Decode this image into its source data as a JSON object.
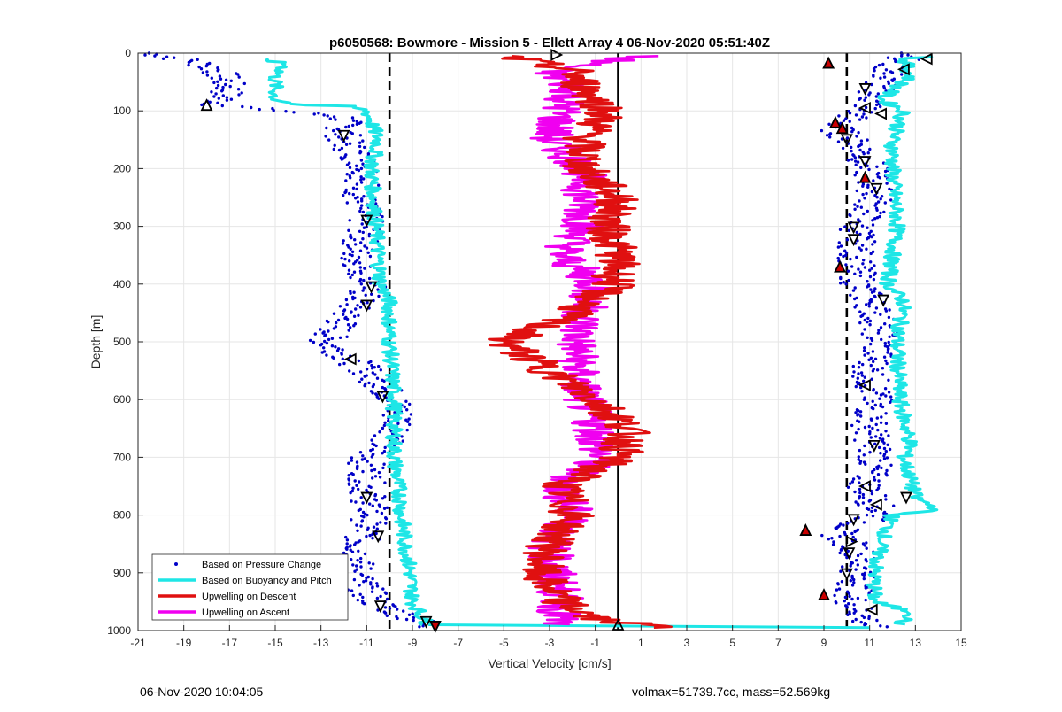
{
  "footer": {
    "left": "06-Nov-2020 10:04:05",
    "right": "volmax=51739.7cc, mass=52.569kg"
  },
  "chart_data": {
    "type": "line",
    "title": "p6050568: Bowmore - Mission 5 - Ellett Array 4 06-Nov-2020 05:51:40Z",
    "xlabel": "Vertical Velocity [cm/s]",
    "ylabel": "Depth [m]",
    "xlim": [
      -21,
      15
    ],
    "ylim": [
      0,
      1000
    ],
    "y_reversed": true,
    "grid": true,
    "xticks": [
      -21,
      -19,
      -17,
      -15,
      -13,
      -11,
      -9,
      -7,
      -5,
      -3,
      -1,
      1,
      3,
      5,
      7,
      9,
      11,
      13,
      15
    ],
    "yticks": [
      0,
      100,
      200,
      300,
      400,
      500,
      600,
      700,
      800,
      900,
      1000
    ],
    "legend_position": "bottom-left",
    "reference_lines": [
      {
        "x": -10,
        "style": "dashed",
        "color": "#000000"
      },
      {
        "x": 0,
        "style": "solid",
        "color": "#000000"
      },
      {
        "x": 10,
        "style": "dashed",
        "color": "#000000"
      }
    ],
    "series": [
      {
        "name": "Based on Pressure Change",
        "style": "points",
        "color": "#0000c8",
        "profiles": [
          {
            "depth": [
              0,
              15,
              30,
              60,
              90,
              110,
              150,
              200,
              250,
              300,
              350,
              400,
              450,
              500,
              550,
              600,
              650,
              700,
              750,
              800,
              850,
              900,
              950,
              980,
              995
            ],
            "velocity": [
              -20.5,
              -18.5,
              -17.5,
              -17,
              -17.5,
              -12,
              -12,
              -11,
              -11.3,
              -11,
              -11.5,
              -10.8,
              -11.8,
              -12.8,
              -11,
              -9.8,
              -9.5,
              -11,
              -11,
              -10.8,
              -11.3,
              -11.5,
              -10.7,
              -9,
              -8
            ]
          },
          {
            "depth": [
              0,
              20,
              50,
              90,
              130,
              160,
              200,
              250,
              300,
              350,
              400,
              450,
              500,
              550,
              600,
              650,
              700,
              750,
              800,
              830,
              860,
              900,
              950,
              980,
              995
            ],
            "velocity": [
              13,
              12,
              11.5,
              11,
              9.5,
              10.5,
              11,
              11.3,
              10.5,
              10.4,
              10.5,
              11.3,
              11.5,
              11,
              11.2,
              11,
              11.3,
              10.8,
              11.5,
              9.5,
              10.5,
              10.5,
              10.2,
              10.8,
              11
            ]
          }
        ]
      },
      {
        "name": "Based on Buoyancy and Pitch",
        "style": "line",
        "color": "#1ee6e6",
        "profiles": [
          {
            "depth": [
              10,
              20,
              40,
              60,
              80,
              90,
              92,
              100,
              150,
              200,
              300,
              400,
              430,
              500,
              600,
              700,
              780,
              800,
              900,
              950,
              980,
              990
            ],
            "velocity": [
              -15.5,
              -14.5,
              -15,
              -15,
              -15,
              -14,
              -11.8,
              -11,
              -10.5,
              -10.8,
              -10.6,
              -10.4,
              -10,
              -10,
              -9.8,
              -9.8,
              -9.5,
              -9.5,
              -9.1,
              -9,
              -8.5,
              -8.3
            ]
          },
          {
            "depth": [
              990,
              995
            ],
            "velocity": [
              -8.3,
              11
            ]
          },
          {
            "depth": [
              5,
              10,
              40,
              80,
              100,
              150,
              200,
              300,
              400,
              430,
              500,
              600,
              680,
              700,
              770,
              790,
              800,
              850,
              900,
              950,
              970,
              990
            ],
            "velocity": [
              14,
              12.5,
              12.8,
              11.5,
              12.5,
              12,
              12,
              12.2,
              11.8,
              12.5,
              12.2,
              12.3,
              12.8,
              12.5,
              13,
              14,
              12,
              11.5,
              11.2,
              11.2,
              13,
              12.2
            ]
          }
        ]
      },
      {
        "name": "Upwelling on Descent",
        "style": "line",
        "color": "#e01010",
        "depth": [
          5,
          30,
          60,
          100,
          150,
          200,
          250,
          300,
          350,
          400,
          450,
          500,
          550,
          600,
          650,
          700,
          750,
          800,
          850,
          900,
          950,
          980,
          995
        ],
        "velocity": [
          -5,
          -2,
          -1.5,
          -0.5,
          -1.5,
          -1.5,
          0,
          -0.5,
          0,
          -0.2,
          -2,
          -5,
          -3,
          -1,
          0.5,
          0,
          -2.5,
          -2,
          -3,
          -3.5,
          -2.5,
          -1,
          2
        ]
      },
      {
        "name": "Upwelling on Ascent",
        "style": "line",
        "color": "#f000f0",
        "depth": [
          5,
          30,
          60,
          100,
          150,
          200,
          250,
          300,
          350,
          400,
          450,
          500,
          550,
          600,
          650,
          700,
          750,
          800,
          850,
          900,
          950,
          990
        ],
        "velocity": [
          1,
          -3,
          -2,
          -2.5,
          -3,
          -1.5,
          -1.5,
          -1.5,
          -2.5,
          -1,
          -1.5,
          -1.8,
          -1.8,
          -1.5,
          -1,
          -0.8,
          -2.5,
          -2,
          -3,
          -2.8,
          -2.5,
          -2.7
        ]
      }
    ],
    "markers": [
      {
        "x": -18,
        "y": 90,
        "shape": "triangle-up",
        "fill": "none"
      },
      {
        "x": -12,
        "y": 143,
        "shape": "triangle-down",
        "fill": "none"
      },
      {
        "x": -11,
        "y": 290,
        "shape": "triangle-down",
        "fill": "none"
      },
      {
        "x": -10.8,
        "y": 405,
        "shape": "triangle-down",
        "fill": "none"
      },
      {
        "x": -11,
        "y": 437,
        "shape": "triangle-down",
        "fill": "none"
      },
      {
        "x": -11.7,
        "y": 530,
        "shape": "triangle-left",
        "fill": "none"
      },
      {
        "x": -10.3,
        "y": 595,
        "shape": "triangle-down",
        "fill": "none"
      },
      {
        "x": -11,
        "y": 770,
        "shape": "triangle-down",
        "fill": "none"
      },
      {
        "x": -10.5,
        "y": 837,
        "shape": "triangle-down",
        "fill": "none"
      },
      {
        "x": -10.4,
        "y": 958,
        "shape": "triangle-down",
        "fill": "none"
      },
      {
        "x": -8.4,
        "y": 985,
        "shape": "triangle-down",
        "fill": "none"
      },
      {
        "x": -8,
        "y": 993,
        "shape": "triangle-down",
        "fill": "#cc0000"
      },
      {
        "x": -2.7,
        "y": 3,
        "shape": "triangle-right",
        "fill": "none"
      },
      {
        "x": 0,
        "y": 990,
        "shape": "triangle-up",
        "fill": "none"
      },
      {
        "x": 13.5,
        "y": 10,
        "shape": "triangle-left",
        "fill": "none"
      },
      {
        "x": 9.2,
        "y": 17,
        "shape": "triangle-up",
        "fill": "#cc0000"
      },
      {
        "x": 12.5,
        "y": 28,
        "shape": "triangle-left",
        "fill": "none"
      },
      {
        "x": 10.8,
        "y": 62,
        "shape": "triangle-down",
        "fill": "none"
      },
      {
        "x": 10.8,
        "y": 95,
        "shape": "triangle-left",
        "fill": "none"
      },
      {
        "x": 11.5,
        "y": 105,
        "shape": "triangle-left",
        "fill": "none"
      },
      {
        "x": 9.5,
        "y": 120,
        "shape": "triangle-up",
        "fill": "#cc0000"
      },
      {
        "x": 9.8,
        "y": 130,
        "shape": "triangle-up",
        "fill": "#cc0000"
      },
      {
        "x": 10,
        "y": 150,
        "shape": "triangle-down",
        "fill": "none"
      },
      {
        "x": 10.8,
        "y": 188,
        "shape": "triangle-down",
        "fill": "none"
      },
      {
        "x": 10.8,
        "y": 215,
        "shape": "triangle-up",
        "fill": "#cc0000"
      },
      {
        "x": 11.3,
        "y": 235,
        "shape": "triangle-down",
        "fill": "none"
      },
      {
        "x": 10.3,
        "y": 302,
        "shape": "triangle-down",
        "fill": "none"
      },
      {
        "x": 10.3,
        "y": 323,
        "shape": "triangle-down",
        "fill": "none"
      },
      {
        "x": 9.7,
        "y": 370,
        "shape": "triangle-up",
        "fill": "#cc0000"
      },
      {
        "x": 11.6,
        "y": 428,
        "shape": "triangle-down",
        "fill": "none"
      },
      {
        "x": 10.8,
        "y": 575,
        "shape": "triangle-left",
        "fill": "none"
      },
      {
        "x": 11.2,
        "y": 680,
        "shape": "triangle-down",
        "fill": "none"
      },
      {
        "x": 10.8,
        "y": 750,
        "shape": "triangle-left",
        "fill": "none"
      },
      {
        "x": 12.6,
        "y": 770,
        "shape": "triangle-down",
        "fill": "none"
      },
      {
        "x": 11.3,
        "y": 782,
        "shape": "triangle-left",
        "fill": "none"
      },
      {
        "x": 10.3,
        "y": 808,
        "shape": "triangle-down",
        "fill": "none"
      },
      {
        "x": 8.2,
        "y": 826,
        "shape": "triangle-up",
        "fill": "#cc0000"
      },
      {
        "x": 10.2,
        "y": 846,
        "shape": "triangle-right",
        "fill": "none"
      },
      {
        "x": 10.1,
        "y": 866,
        "shape": "triangle-down",
        "fill": "none"
      },
      {
        "x": 10,
        "y": 902,
        "shape": "triangle-down",
        "fill": "none"
      },
      {
        "x": 9,
        "y": 938,
        "shape": "triangle-up",
        "fill": "#cc0000"
      },
      {
        "x": 11.1,
        "y": 964,
        "shape": "triangle-left",
        "fill": "none"
      }
    ]
  }
}
